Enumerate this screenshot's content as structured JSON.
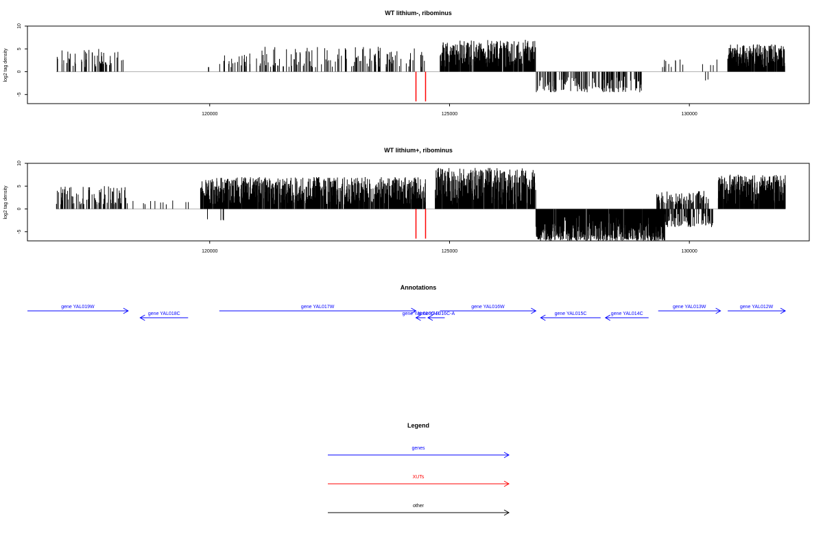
{
  "chart_data": [
    {
      "type": "bar",
      "title": "WT lithium-, ribominus",
      "xlabel": "",
      "ylabel": "log2 tag density",
      "xlim": [
        116200,
        132500
      ],
      "ylim": [
        -7,
        10
      ],
      "x_ticks": [
        120000,
        125000,
        130000
      ],
      "y_ticks": [
        -5,
        0,
        5,
        10
      ],
      "y_tick_labels": [
        "-5",
        "0",
        "5",
        "10"
      ],
      "x_tick_labels": [
        "120000",
        "125000",
        "130000"
      ],
      "baseline_segments": [
        [
          116800,
          132000
        ]
      ],
      "regions": [
        {
          "from": 116800,
          "to": 118200,
          "min": 1,
          "max": 5,
          "density": 0.55,
          "sign": 1
        },
        {
          "from": 119950,
          "to": 120050,
          "min": 1,
          "max": 1,
          "density": 0.3,
          "sign": 1
        },
        {
          "from": 120200,
          "to": 121000,
          "min": 1,
          "max": 4,
          "density": 0.4,
          "sign": 1
        },
        {
          "from": 121000,
          "to": 124500,
          "min": 1,
          "max": 5.5,
          "density": 0.5,
          "sign": 1
        },
        {
          "from": 124800,
          "to": 126800,
          "min": 1,
          "max": 7,
          "density": 3.0,
          "sign": 1
        },
        {
          "from": 126800,
          "to": 129000,
          "min": -4.5,
          "max": -1,
          "density": 0.9,
          "sign": -1
        },
        {
          "from": 129300,
          "to": 130600,
          "min": 1,
          "max": 3,
          "density": 0.15,
          "sign": 1
        },
        {
          "from": 130300,
          "to": 130400,
          "min": -2,
          "max": -1,
          "density": 0.3,
          "sign": -1
        },
        {
          "from": 130800,
          "to": 132000,
          "min": 1,
          "max": 6,
          "density": 3.5,
          "sign": 1
        }
      ],
      "highlights": [
        {
          "x": 124300,
          "value": -6.5,
          "color": "#ff0000"
        },
        {
          "x": 124500,
          "value": -6.5,
          "color": "#ff0000"
        }
      ]
    },
    {
      "type": "bar",
      "title": "WT lithium+, ribominus",
      "xlabel": "",
      "ylabel": "log2 tag density",
      "xlim": [
        116200,
        132500
      ],
      "ylim": [
        -7,
        10
      ],
      "x_ticks": [
        120000,
        125000,
        130000
      ],
      "y_ticks": [
        -5,
        0,
        5,
        10
      ],
      "y_tick_labels": [
        "-5",
        "0",
        "5",
        "10"
      ],
      "x_tick_labels": [
        "120000",
        "125000",
        "130000"
      ],
      "baseline_segments": [
        [
          116800,
          132000
        ]
      ],
      "regions": [
        {
          "from": 116800,
          "to": 118300,
          "min": 1,
          "max": 5,
          "density": 0.8,
          "sign": 1
        },
        {
          "from": 118300,
          "to": 119600,
          "min": 1,
          "max": 2,
          "density": 0.12,
          "sign": 1
        },
        {
          "from": 119800,
          "to": 120300,
          "min": -2.5,
          "max": -1,
          "density": 0.12,
          "sign": -1
        },
        {
          "from": 119800,
          "to": 124500,
          "min": 1,
          "max": 7,
          "density": 3.0,
          "sign": 1
        },
        {
          "from": 124700,
          "to": 126800,
          "min": 1,
          "max": 9,
          "density": 3.5,
          "sign": 1
        },
        {
          "from": 126800,
          "to": 129500,
          "min": -7,
          "max": -1,
          "density": 4.0,
          "sign": -1
        },
        {
          "from": 129300,
          "to": 130400,
          "min": 1,
          "max": 4,
          "density": 1.2,
          "sign": 1
        },
        {
          "from": 129400,
          "to": 130500,
          "min": -4,
          "max": -1,
          "density": 1.0,
          "sign": -1
        },
        {
          "from": 130600,
          "to": 132000,
          "min": 1,
          "max": 7.5,
          "density": 4.0,
          "sign": 1
        }
      ],
      "highlights": [
        {
          "x": 124300,
          "value": -6.5,
          "color": "#ff0000"
        },
        {
          "x": 124500,
          "value": -6.5,
          "color": "#ff0000"
        }
      ]
    }
  ],
  "annotations": {
    "title": "Annotations",
    "genes": [
      {
        "label": "gene YAL019W",
        "start": 116200,
        "end": 118300,
        "strand": "+",
        "row": 0
      },
      {
        "label": "gene YAL018C",
        "start": 118550,
        "end": 119550,
        "strand": "-",
        "row": 1
      },
      {
        "label": "gene YAL017W",
        "start": 120200,
        "end": 124300,
        "strand": "+",
        "row": 0
      },
      {
        "label": "gene YAL016C-B",
        "start": 124300,
        "end": 124500,
        "strand": "-",
        "row": 1
      },
      {
        "label": "gene YAL016C-A",
        "start": 124550,
        "end": 124900,
        "strand": "-",
        "row": 1
      },
      {
        "label": "gene YAL016W",
        "start": 124800,
        "end": 126800,
        "strand": "+",
        "row": 0
      },
      {
        "label": "gene YAL015C",
        "start": 126900,
        "end": 128150,
        "strand": "-",
        "row": 1
      },
      {
        "label": "gene YAL014C",
        "start": 128250,
        "end": 129150,
        "strand": "-",
        "row": 1
      },
      {
        "label": "gene YAL013W",
        "start": 129350,
        "end": 130650,
        "strand": "+",
        "row": 0
      },
      {
        "label": "gene YAL012W",
        "start": 130800,
        "end": 132000,
        "strand": "+",
        "row": 0
      }
    ]
  },
  "legend": {
    "title": "Legend",
    "items": [
      {
        "label": "genes",
        "color": "#0000ff"
      },
      {
        "label": "XUTs",
        "color": "#ff0000"
      },
      {
        "label": "other",
        "color": "#000000"
      }
    ]
  },
  "colors": {
    "data_bar": "#000000",
    "baseline": "#999999",
    "gene": "#0000ff"
  }
}
